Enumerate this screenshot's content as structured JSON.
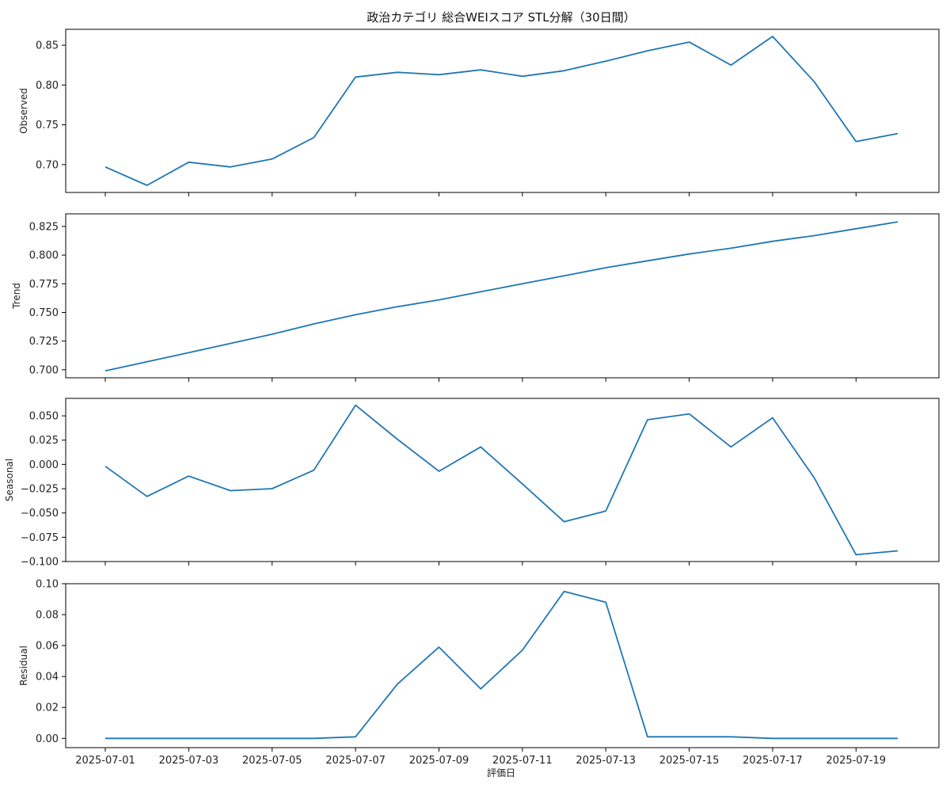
{
  "chart_data": {
    "type": "line",
    "title": "政治カテゴリ 総合WEIスコア STL分解（30日間）",
    "xlabel": "評価日",
    "x": [
      "2025-07-01",
      "2025-07-02",
      "2025-07-03",
      "2025-07-04",
      "2025-07-05",
      "2025-07-06",
      "2025-07-07",
      "2025-07-08",
      "2025-07-09",
      "2025-07-10",
      "2025-07-11",
      "2025-07-12",
      "2025-07-13",
      "2025-07-14",
      "2025-07-15",
      "2025-07-16",
      "2025-07-17",
      "2025-07-18",
      "2025-07-19",
      "2025-07-20"
    ],
    "x_tick_labels": [
      "2025-07-01",
      "2025-07-03",
      "2025-07-05",
      "2025-07-07",
      "2025-07-09",
      "2025-07-11",
      "2025-07-13",
      "2025-07-15",
      "2025-07-17",
      "2025-07-19"
    ],
    "line_color": "#1f77b4",
    "panels": [
      {
        "ylabel": "Observed",
        "ylim": [
          0.665,
          0.87
        ],
        "yticks": [
          0.7,
          0.75,
          0.8,
          0.85
        ],
        "ytick_labels": [
          "0.70",
          "0.75",
          "0.80",
          "0.85"
        ],
        "values": [
          0.697,
          0.674,
          0.703,
          0.697,
          0.707,
          0.734,
          0.81,
          0.816,
          0.813,
          0.819,
          0.811,
          0.818,
          0.83,
          0.843,
          0.854,
          0.825,
          0.861,
          0.804,
          0.729,
          0.739
        ]
      },
      {
        "ylabel": "Trend",
        "ylim": [
          0.693,
          0.836
        ],
        "yticks": [
          0.7,
          0.725,
          0.75,
          0.775,
          0.8,
          0.825
        ],
        "ytick_labels": [
          "0.700",
          "0.725",
          "0.750",
          "0.775",
          "0.800",
          "0.825"
        ],
        "values": [
          0.699,
          0.707,
          0.715,
          0.723,
          0.731,
          0.74,
          0.748,
          0.755,
          0.761,
          0.768,
          0.775,
          0.782,
          0.789,
          0.795,
          0.801,
          0.806,
          0.812,
          0.817,
          0.823,
          0.829
        ]
      },
      {
        "ylabel": "Seasonal",
        "ylim": [
          -0.1,
          0.068
        ],
        "yticks": [
          -0.1,
          -0.075,
          -0.05,
          -0.025,
          0.0,
          0.025,
          0.05
        ],
        "ytick_labels": [
          "−0.100",
          "−0.075",
          "−0.050",
          "−0.025",
          "0.000",
          "0.025",
          "0.050"
        ],
        "values": [
          -0.002,
          -0.033,
          -0.012,
          -0.027,
          -0.025,
          -0.006,
          0.061,
          0.026,
          -0.007,
          0.018,
          -0.02,
          -0.059,
          -0.048,
          0.046,
          0.052,
          0.018,
          0.048,
          -0.014,
          -0.093,
          -0.089
        ]
      },
      {
        "ylabel": "Residual",
        "ylim": [
          -0.006,
          0.1
        ],
        "yticks": [
          0.0,
          0.02,
          0.04,
          0.06,
          0.08,
          0.1
        ],
        "ytick_labels": [
          "0.00",
          "0.02",
          "0.04",
          "0.06",
          "0.08",
          "0.10"
        ],
        "values": [
          0.0,
          0.0,
          0.0,
          0.0,
          0.0,
          0.0,
          0.001,
          0.035,
          0.059,
          0.032,
          0.057,
          0.095,
          0.088,
          0.001,
          0.001,
          0.001,
          0.0,
          0.0,
          0.0,
          0.0
        ]
      }
    ]
  }
}
